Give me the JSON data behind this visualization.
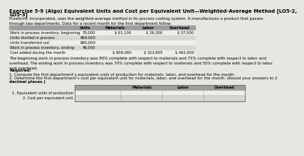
{
  "title_line1": "Exercise 5-9 (Algo) Equivalent Units and Cost per Equivalent Unit—Weighted-Average Method [LO5-2,",
  "title_line2": "LO5-3]",
  "intro": "Pureform, Incorporated, uses the weighted-average method in its process costing system. It manufactures a product that passes\nthrough two departments. Data for a recent month for the first department follow:",
  "table1_header": [
    "",
    "Units",
    "Materials",
    "Labor",
    "Overhead"
  ],
  "table1_rows": [
    [
      "Work in process inventory, beginning",
      "70,000",
      "$ 61,100",
      "$ 26,300",
      "$ 37,500"
    ],
    [
      "Units started in process",
      "669,000",
      "",
      "",
      ""
    ],
    [
      "Units transferred out",
      "690,000",
      "",
      "",
      ""
    ],
    [
      "Work in process inventory, ending",
      "49,000",
      "",
      "",
      ""
    ],
    [
      "Cost added during the month",
      "",
      "$ 808,060",
      "$ 323,805",
      "$ 462,650"
    ]
  ],
  "note": "The beginning work in process inventory was 90% complete with respect to materials and 75% complete with respect to labor and\noverhead. The ending work in process inventory was 70% complete with respect to materials and 50% complete with respect to labor\nand overhead.",
  "required_label": "Required:",
  "req1": "1. Compute the first department’s equivalent units of production for materials, labor, and overhead for the month.",
  "req2": "2. Determine the first department’s cost per equivalent unit for materials, labor, and overhead for the month. (Round your answers to 2",
  "req2b": "decimal places.)",
  "table2_header": [
    "",
    "Materials",
    "Labor",
    "Overhead"
  ],
  "table2_rows": [
    [
      "1. Equivalent units of production",
      "",
      "",
      ""
    ],
    [
      "2. Cost per equivalent unit",
      "",
      "",
      ""
    ]
  ],
  "bg_color": "#e8e6e0",
  "table_header_bg": "#9e9e9e",
  "row_alt1": "#d8d6d0",
  "row_alt2": "#c8c6c0",
  "white": "#f0eeea",
  "title_fontsize": 5.0,
  "body_fontsize": 4.0,
  "table_fontsize": 3.8
}
